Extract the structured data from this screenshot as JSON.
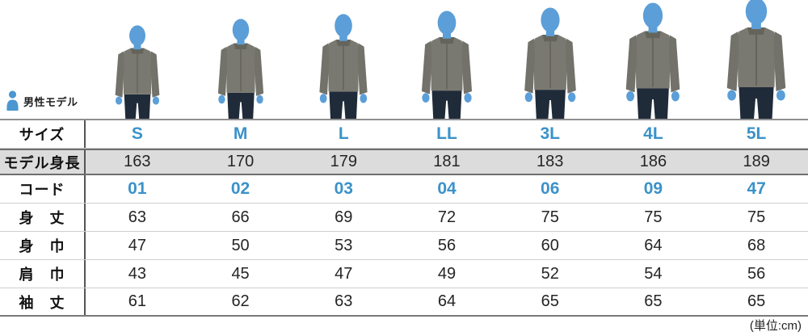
{
  "model_section": {
    "label": "男性モデル"
  },
  "unit_note": "(単位:cm)",
  "sizes": [
    "S",
    "M",
    "L",
    "LL",
    "3L",
    "4L",
    "5L"
  ],
  "chart_data": {
    "type": "table",
    "unit": "cm",
    "columns": [
      "サイズ",
      "S",
      "M",
      "L",
      "LL",
      "3L",
      "4L",
      "5L"
    ],
    "rows": [
      {
        "label": "モデル身長",
        "values": [
          "163",
          "170",
          "179",
          "181",
          "183",
          "186",
          "189"
        ]
      },
      {
        "label": "コード",
        "values": [
          "01",
          "02",
          "03",
          "04",
          "06",
          "09",
          "47"
        ]
      },
      {
        "label": "身　丈",
        "values": [
          "63",
          "66",
          "69",
          "72",
          "75",
          "75",
          "75"
        ]
      },
      {
        "label": "身　巾",
        "values": [
          "47",
          "50",
          "53",
          "56",
          "60",
          "64",
          "68"
        ]
      },
      {
        "label": "肩　巾",
        "values": [
          "43",
          "45",
          "47",
          "49",
          "52",
          "54",
          "56"
        ]
      },
      {
        "label": "袖　丈",
        "values": [
          "61",
          "62",
          "63",
          "64",
          "65",
          "65",
          "65"
        ]
      }
    ]
  },
  "colors": {
    "accent_blue": "#3b92c9",
    "silhouette_blue": "#5b9ed8",
    "jacket_gray": "#7a7971",
    "jacket_dark": "#65645b",
    "sleeve_gray": "#72716a",
    "jeans_navy": "#202b39",
    "row_gray_bg": "#dcdcdc"
  }
}
